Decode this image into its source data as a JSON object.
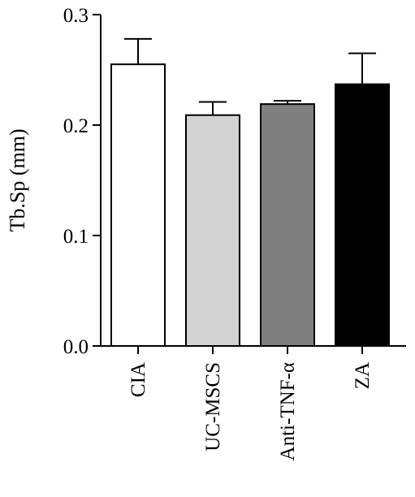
{
  "chart_data": {
    "type": "bar",
    "categories": [
      "CIA",
      "UC-MSCS",
      "Anti-TNF-α",
      "ZA"
    ],
    "values": [
      0.255,
      0.209,
      0.219,
      0.237
    ],
    "errors": [
      0.023,
      0.012,
      0.003,
      0.028
    ],
    "bar_colors": [
      "#ffffff",
      "#d3d3d3",
      "#7f7f7f",
      "#000000"
    ],
    "xlabel": "",
    "ylabel": "Tb.Sp (mm)",
    "ylim": [
      0.0,
      0.3
    ],
    "yticks": [
      "0.0",
      "0.1",
      "0.2",
      "0.3"
    ],
    "grid": false
  }
}
